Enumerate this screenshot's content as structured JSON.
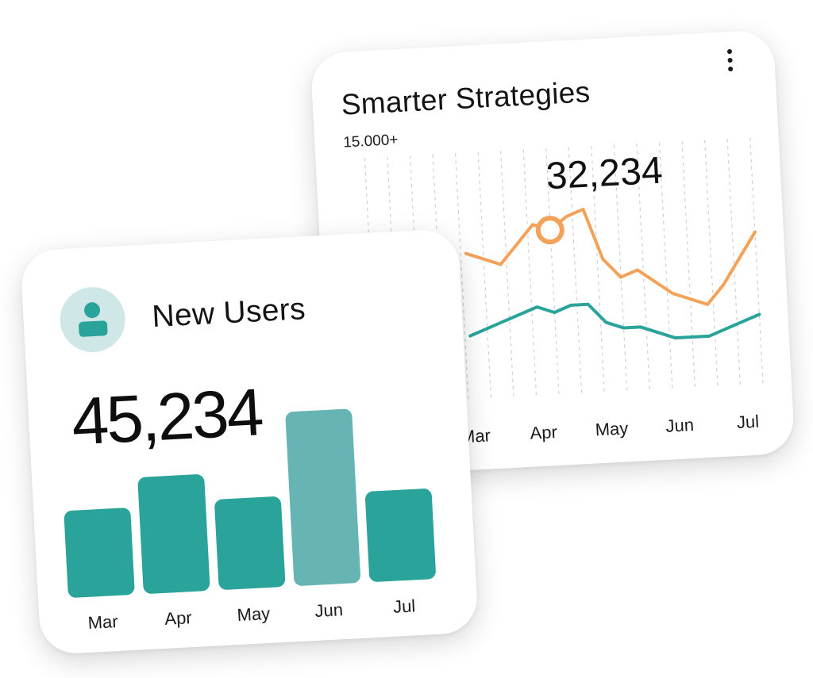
{
  "cards": {
    "strategies": {
      "title": "Smarter Strategies",
      "y_label": "15.000+",
      "highlight_value": "32,234"
    },
    "new_users": {
      "title": "New Users",
      "value": "45,234"
    }
  },
  "colors": {
    "orange": "#F4A259",
    "teal": "#2AA39B",
    "teal_highlight": "#66B4B4",
    "avatar_bg": "#CFE8E7",
    "grid": "#CFCFCF"
  },
  "icons": {
    "menu": "kebab-vertical-icon",
    "avatar": "user-icon"
  },
  "chart_data": [
    {
      "type": "line",
      "title": "Smarter Strategies",
      "ylabel": "15.000+",
      "xlabel": "",
      "categories": [
        "Mar",
        "Apr",
        "May",
        "Jun",
        "Jul"
      ],
      "x": [
        0,
        0.25,
        0.5,
        0.75,
        1,
        1.25,
        1.5,
        1.75,
        2,
        2.25,
        2.5,
        2.75,
        3,
        3.25,
        3.5,
        3.75,
        4,
        4.25
      ],
      "series": [
        {
          "color": "#F4A259",
          "values": [
            56,
            55,
            54,
            57,
            60,
            59,
            61,
            62,
            54,
            51,
            52,
            50,
            48,
            47,
            46,
            49,
            53,
            57
          ]
        },
        {
          "color": "#2AA39B",
          "values": [
            43,
            44,
            45,
            46,
            47,
            46,
            47,
            47,
            44,
            43,
            43,
            42,
            41,
            41,
            41,
            42,
            43,
            44
          ]
        }
      ],
      "highlight": {
        "x": 1.25,
        "value": "32,234"
      },
      "ylim": [
        30,
        70
      ],
      "grid": "vertical-dashed",
      "legend": "none"
    },
    {
      "type": "bar",
      "title": "New Users",
      "categories": [
        "Mar",
        "Apr",
        "May",
        "Jun",
        "Jul"
      ],
      "values": [
        50,
        67,
        52,
        100,
        52
      ],
      "highlight_index": 3,
      "ylim": [
        0,
        100
      ],
      "legend": "none"
    }
  ]
}
